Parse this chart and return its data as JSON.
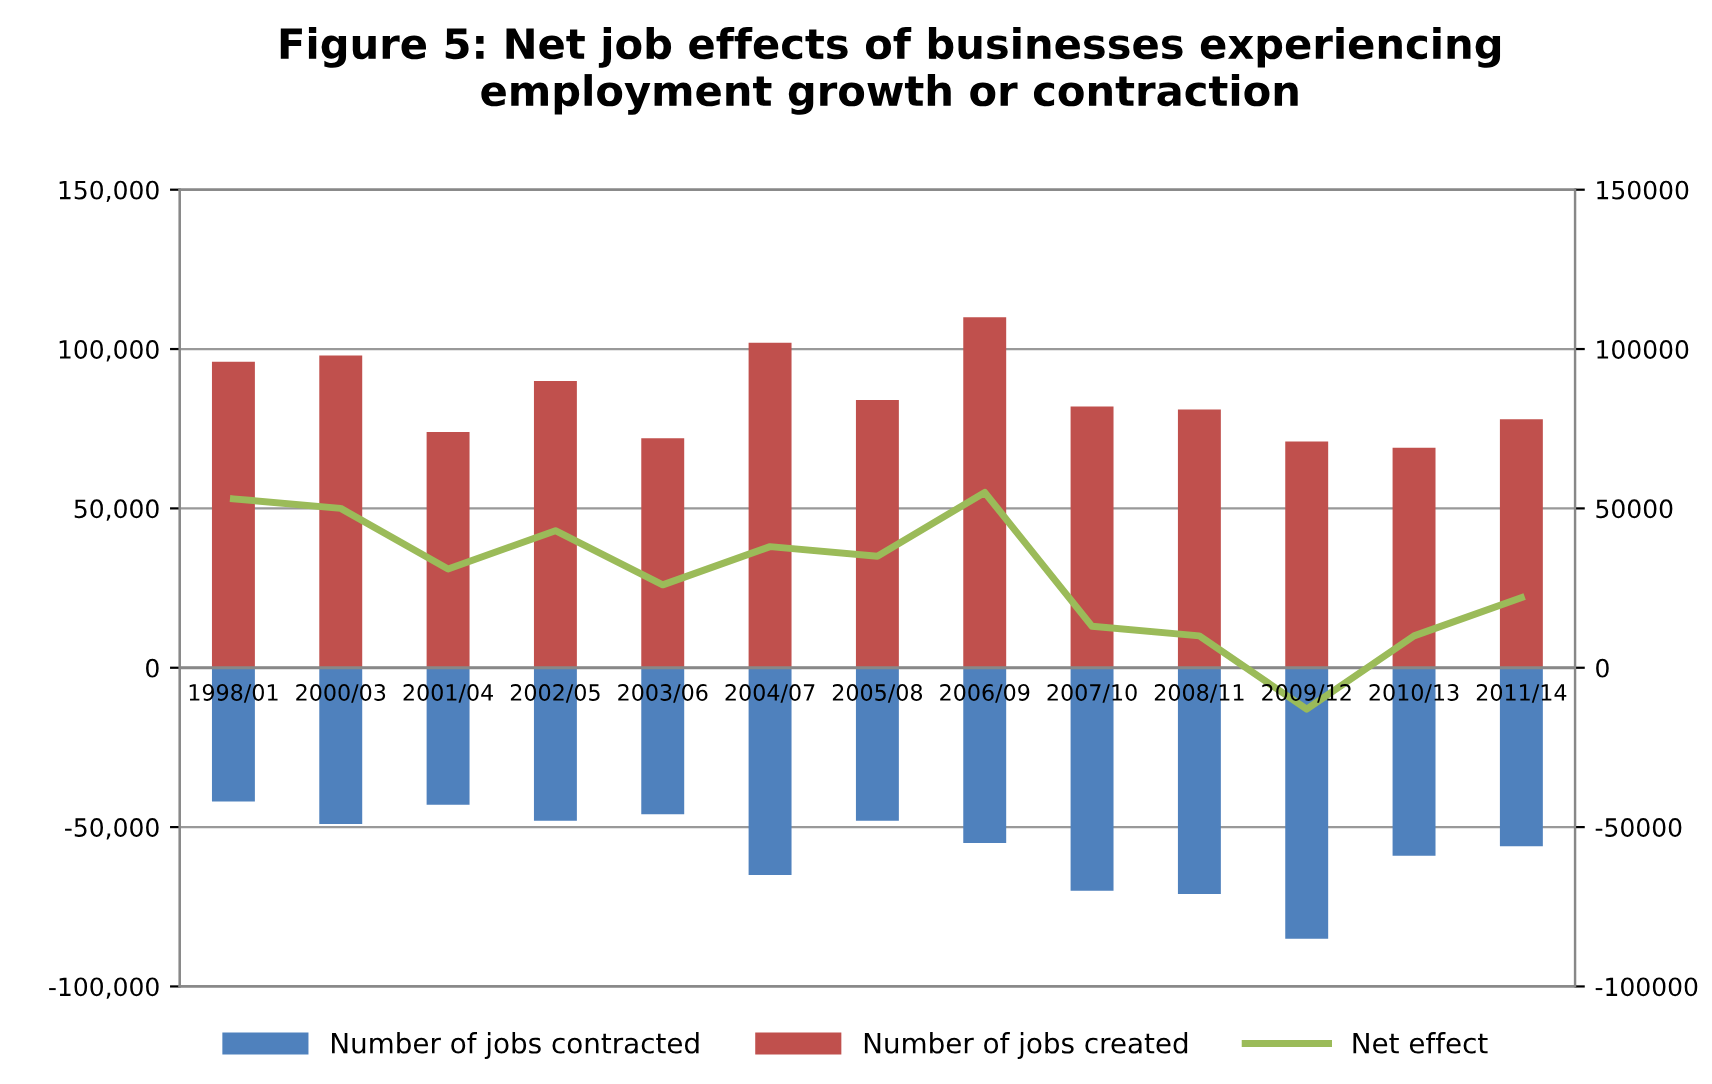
{
  "chart_data": {
    "type": "bar",
    "title": "Figure 5: Net job effects of businesses experiencing\nemployment growth or contraction",
    "categories": [
      "1998/01",
      "2000/03",
      "2001/04",
      "2002/05",
      "2003/06",
      "2004/07",
      "2005/08",
      "2006/09",
      "2007/10",
      "2008/11",
      "2009/12",
      "2010/13",
      "2011/14"
    ],
    "stacked": true,
    "series": [
      {
        "name": "Number of jobs contracted",
        "color": "#4f81bd",
        "values": [
          -42000,
          -49000,
          -43000,
          -48000,
          -46000,
          -65000,
          -48000,
          -55000,
          -70000,
          -71000,
          -85000,
          -59000,
          -56000
        ]
      },
      {
        "name": "Number of jobs created",
        "color": "#c0504d",
        "values": [
          96000,
          98000,
          74000,
          90000,
          72000,
          102000,
          84000,
          110000,
          82000,
          81000,
          71000,
          69000,
          78000
        ]
      },
      {
        "name": "Net effect",
        "color": "#9bbb59",
        "type": "line",
        "values": [
          53000,
          50000,
          31000,
          43000,
          26000,
          38000,
          35000,
          55000,
          13000,
          10000,
          -13000,
          10000,
          22000
        ]
      }
    ],
    "ylim": [
      -100000,
      150000
    ],
    "yticks": [
      {
        "value": -100000,
        "label": "-100,000"
      },
      {
        "value": -50000,
        "label": "-50,000"
      },
      0,
      {
        "value": 50000,
        "label": "50,000"
      },
      {
        "value": 100000,
        "label": "100,000"
      },
      {
        "value": 150000,
        "label": "150,000"
      }
    ],
    "y2lim": [
      -100000,
      150000
    ],
    "y2ticks": [
      -100000,
      -50000,
      0,
      50000,
      100000,
      150000
    ],
    "grid": "y",
    "legend": "bottom",
    "line_style": "solid",
    "marker": "none"
  }
}
